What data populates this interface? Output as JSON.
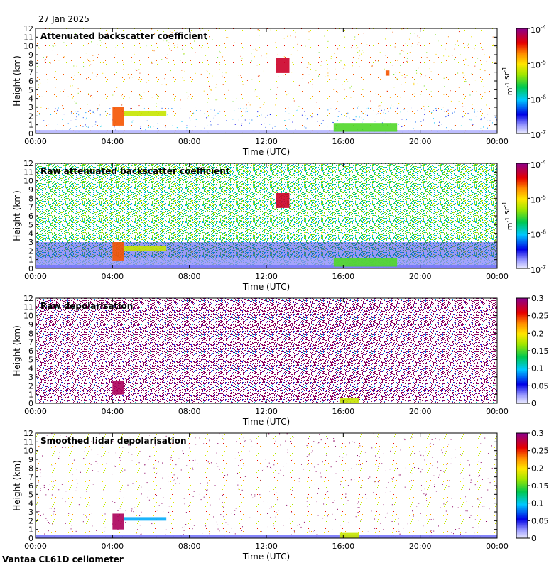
{
  "date": "27 Jan 2025",
  "instrument": "Vantaa CL61D ceilometer",
  "chart_data": [
    {
      "type": "heatmap",
      "title": "Attenuated backscatter coefficient",
      "xlabel": "Time (UTC)",
      "ylabel": "Height (km)",
      "xticks": [
        "00:00",
        "04:00",
        "08:00",
        "12:00",
        "16:00",
        "20:00",
        "00:00"
      ],
      "yticks": [
        0,
        1,
        2,
        3,
        4,
        5,
        6,
        7,
        8,
        9,
        10,
        11,
        12
      ],
      "ylim": [
        0,
        12
      ],
      "colorbar": {
        "scale": "log",
        "ticks": [
          "10-7",
          "10-6",
          "10-5",
          "10-4"
        ],
        "unit": "m-1 sr-1"
      },
      "features": [
        {
          "time_start": 0.0,
          "time_end": 24.0,
          "height_start": 0.0,
          "height_end": 0.4,
          "level": 0.05
        },
        {
          "time_start": 4.0,
          "time_end": 4.6,
          "height_start": 0.9,
          "height_end": 3.0,
          "level": 0.8
        },
        {
          "time_start": 4.6,
          "time_end": 6.8,
          "height_start": 2.0,
          "height_end": 2.6,
          "level": 0.6
        },
        {
          "time_start": 12.5,
          "time_end": 13.2,
          "height_start": 6.9,
          "height_end": 8.6,
          "level": 0.9
        },
        {
          "time_start": 15.5,
          "time_end": 18.8,
          "height_start": 0.2,
          "height_end": 1.2,
          "level": 0.5
        },
        {
          "time_start": 18.2,
          "time_end": 18.4,
          "height_start": 6.6,
          "height_end": 7.2,
          "level": 0.8
        }
      ]
    },
    {
      "type": "heatmap",
      "title": "Raw attenuated backscatter coefficient",
      "xlabel": "Time (UTC)",
      "ylabel": "Height (km)",
      "xticks": [
        "00:00",
        "04:00",
        "08:00",
        "12:00",
        "16:00",
        "20:00",
        "00:00"
      ],
      "yticks": [
        0,
        1,
        2,
        3,
        4,
        5,
        6,
        7,
        8,
        9,
        10,
        11,
        12
      ],
      "ylim": [
        0,
        12
      ],
      "colorbar": {
        "scale": "log",
        "ticks": [
          "10-7",
          "10-6",
          "10-5",
          "10-4"
        ],
        "unit": "m-1 sr-1"
      },
      "features": [
        {
          "time_start": 0.0,
          "time_end": 24.0,
          "height_start": 0.0,
          "height_end": 0.4,
          "level": 0.1
        },
        {
          "time_start": 4.0,
          "time_end": 4.6,
          "height_start": 0.9,
          "height_end": 3.0,
          "level": 0.8
        },
        {
          "time_start": 4.6,
          "time_end": 6.8,
          "height_start": 2.0,
          "height_end": 2.6,
          "level": 0.6
        },
        {
          "time_start": 12.5,
          "time_end": 13.2,
          "height_start": 6.9,
          "height_end": 8.6,
          "level": 0.9
        },
        {
          "time_start": 15.5,
          "time_end": 18.8,
          "height_start": 0.2,
          "height_end": 1.2,
          "level": 0.5
        }
      ]
    },
    {
      "type": "heatmap",
      "title": "Raw depolarisation",
      "xlabel": "Time (UTC)",
      "ylabel": "Height (km)",
      "xticks": [
        "00:00",
        "04:00",
        "08:00",
        "12:00",
        "16:00",
        "20:00",
        "00:00"
      ],
      "yticks": [
        0,
        1,
        2,
        3,
        4,
        5,
        6,
        7,
        8,
        9,
        10,
        11,
        12
      ],
      "ylim": [
        0,
        12
      ],
      "colorbar": {
        "scale": "linear",
        "ticks": [
          "0",
          "0.05",
          "0.1",
          "0.15",
          "0.2",
          "0.25",
          "0.3"
        ],
        "range": [
          0,
          0.3
        ]
      },
      "features": [
        {
          "time_start": 4.0,
          "time_end": 4.6,
          "height_start": 1.0,
          "height_end": 2.6,
          "level": 0.95
        },
        {
          "time_start": 15.8,
          "time_end": 16.8,
          "height_start": 0.0,
          "height_end": 0.6,
          "level": 0.6
        }
      ]
    },
    {
      "type": "heatmap",
      "title": "Smoothed lidar depolarisation",
      "xlabel": "Time (UTC)",
      "ylabel": "Height (km)",
      "xticks": [
        "00:00",
        "04:00",
        "08:00",
        "12:00",
        "16:00",
        "20:00",
        "00:00"
      ],
      "yticks": [
        0,
        1,
        2,
        3,
        4,
        5,
        6,
        7,
        8,
        9,
        10,
        11,
        12
      ],
      "ylim": [
        0,
        12
      ],
      "colorbar": {
        "scale": "linear",
        "ticks": [
          "0",
          "0.05",
          "0.1",
          "0.15",
          "0.2",
          "0.25",
          "0.3"
        ],
        "range": [
          0,
          0.3
        ]
      },
      "features": [
        {
          "time_start": 0.0,
          "time_end": 24.0,
          "height_start": 0.0,
          "height_end": 0.4,
          "level": 0.1
        },
        {
          "time_start": 4.0,
          "time_end": 4.6,
          "height_start": 1.0,
          "height_end": 2.8,
          "level": 0.95
        },
        {
          "time_start": 4.6,
          "time_end": 6.8,
          "height_start": 2.0,
          "height_end": 2.4,
          "level": 0.3
        },
        {
          "time_start": 15.8,
          "time_end": 16.8,
          "height_start": 0.0,
          "height_end": 0.6,
          "level": 0.6
        }
      ]
    }
  ]
}
